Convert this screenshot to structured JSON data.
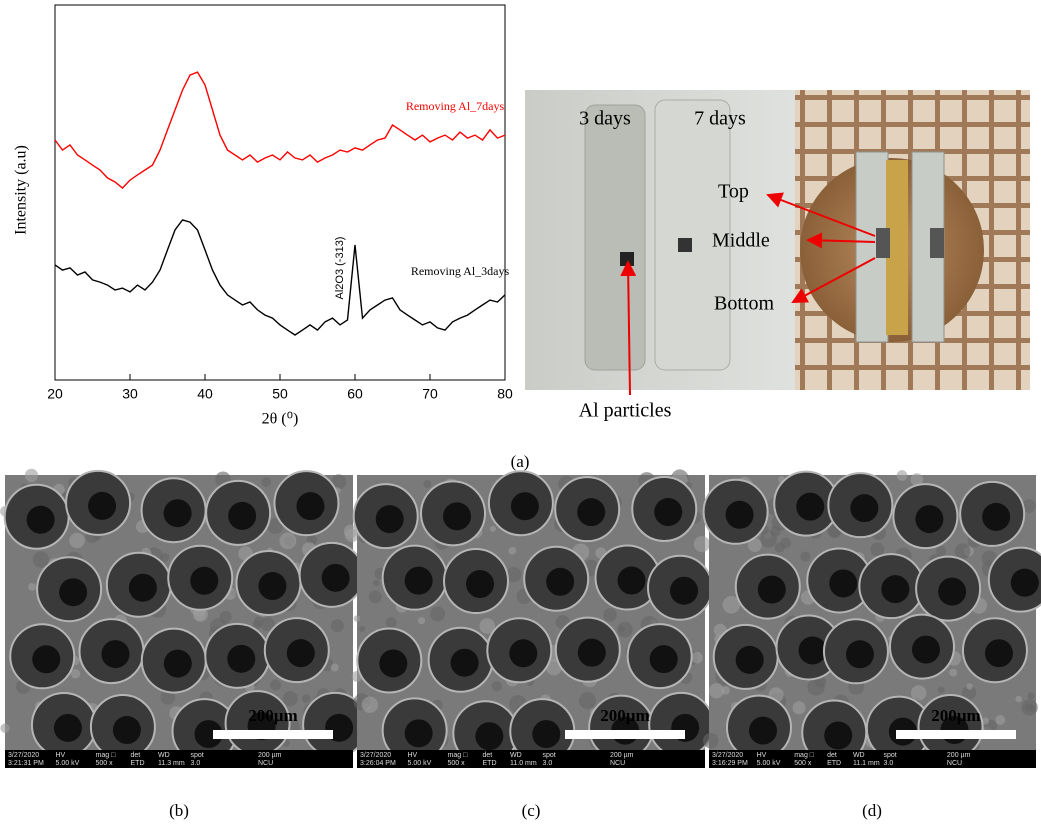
{
  "chart_data": {
    "type": "line",
    "y_label": "Intensity (a.u)",
    "x_label": "2θ (⁰)",
    "xlim": [
      20,
      80
    ],
    "xticks": [
      20,
      30,
      40,
      50,
      60,
      70,
      80
    ],
    "ylim": [
      0,
      100
    ],
    "x": [
      20,
      21,
      22,
      23,
      24,
      25,
      26,
      27,
      28,
      29,
      30,
      31,
      32,
      33,
      34,
      35,
      36,
      37,
      38,
      39,
      40,
      41,
      42,
      43,
      44,
      45,
      46,
      47,
      48,
      49,
      50,
      51,
      52,
      53,
      54,
      55,
      56,
      57,
      58,
      59,
      60,
      61,
      62,
      63,
      64,
      65,
      66,
      67,
      68,
      69,
      70,
      71,
      72,
      73,
      74,
      75,
      76,
      77,
      78,
      79,
      80
    ],
    "series": [
      {
        "name": "Removing Al_7days",
        "color": "#ff0000",
        "values": [
          64,
          61.3,
          62.7,
          60,
          58.7,
          57.3,
          56,
          53.9,
          52.8,
          51.2,
          53.3,
          54.7,
          56,
          57.3,
          61.3,
          66.7,
          72,
          77.3,
          81.3,
          82.1,
          78.7,
          72,
          65.3,
          61.3,
          60,
          58.7,
          60,
          58.1,
          59.2,
          60,
          58.7,
          60.8,
          59.2,
          58.7,
          60,
          58.1,
          59.2,
          60,
          61.3,
          60.8,
          61.9,
          61.3,
          62.7,
          64,
          64.5,
          68,
          66.7,
          65.3,
          64,
          65.3,
          63.5,
          64.5,
          65.3,
          64,
          66.1,
          64.5,
          65.3,
          64,
          66.7,
          64.5,
          65.3
        ]
      },
      {
        "name": "Removing Al_3days",
        "color": "#000000",
        "values": [
          30.7,
          29.3,
          29.9,
          28,
          28.8,
          26.7,
          26.1,
          25.3,
          24,
          24.5,
          23.5,
          25.3,
          24,
          26.1,
          29.3,
          34.7,
          40,
          42.7,
          42.1,
          40,
          34.7,
          29.3,
          25.3,
          22.7,
          21.3,
          20,
          20.8,
          18.7,
          17.3,
          16.5,
          14.7,
          13.3,
          12,
          13.3,
          14.7,
          13.3,
          15.5,
          16.5,
          14.7,
          16,
          36,
          16.5,
          18.7,
          20,
          21.3,
          21.9,
          18.7,
          17.3,
          16,
          14.7,
          15.5,
          13.9,
          13.3,
          15.5,
          16.5,
          17.3,
          18.7,
          20,
          21.3,
          20.8,
          22.7
        ]
      }
    ],
    "annotation": "Al2O3 (-313)"
  },
  "photo": {
    "labels": [
      "3 days",
      "7 days",
      "Top",
      "Middle",
      "Bottom",
      "Al particles"
    ]
  },
  "captions": [
    "(a)",
    "(b)",
    "(c)",
    "(d)"
  ],
  "sem": [
    {
      "scale": "200µm",
      "bar": [
        "3/27/2020",
        "3:21:31 PM",
        "HV",
        "5.00 kV",
        "mag □",
        "500 x",
        "det",
        "ETD",
        "WD",
        "11.3 mm",
        "spot",
        "3.0",
        "200 µm",
        "NCU"
      ]
    },
    {
      "scale": "200µm",
      "bar": [
        "3/27/2020",
        "3:26:04 PM",
        "HV",
        "5.00 kV",
        "mag □",
        "500 x",
        "det",
        "ETD",
        "WD",
        "11.0 mm",
        "spot",
        "3.0",
        "200 µm",
        "NCU"
      ]
    },
    {
      "scale": "200µm",
      "bar": [
        "3/27/2020",
        "3:16:29 PM",
        "HV",
        "5.00 kV",
        "mag □",
        "500 x",
        "det",
        "ETD",
        "WD",
        "11.1 mm",
        "spot",
        "3.0",
        "200 µm",
        "NCU"
      ]
    }
  ]
}
